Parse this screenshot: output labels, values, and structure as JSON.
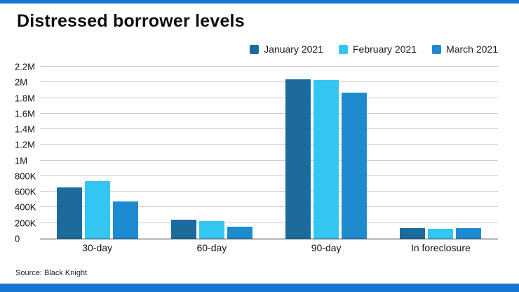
{
  "accent_color": "#1777d2",
  "source": "Source: Black Knight",
  "chart_data": {
    "type": "bar",
    "title": "Distressed borrower levels",
    "categories": [
      "30-day",
      "60-day",
      "90-day",
      "In foreclosure"
    ],
    "series": [
      {
        "name": "January 2021",
        "color": "#1d6a9c",
        "values": [
          660000,
          240000,
          2040000,
          135000
        ]
      },
      {
        "name": "February 2021",
        "color": "#33c6f2",
        "values": [
          740000,
          225000,
          2030000,
          130000
        ]
      },
      {
        "name": "March 2021",
        "color": "#1e8bd1",
        "values": [
          480000,
          155000,
          1870000,
          132000
        ]
      }
    ],
    "ylim": [
      0,
      2200000
    ],
    "ytick_interval": 200000,
    "ytick_labels": [
      "0",
      "200K",
      "400K",
      "600K",
      "800K",
      "1M",
      "1.2M",
      "1.4M",
      "1.6M",
      "1.8M",
      "2M",
      "2.2M"
    ],
    "grid": true,
    "legend_position": "top-right",
    "gridline_color": "#cccccc",
    "baseline_color": "#222222"
  }
}
